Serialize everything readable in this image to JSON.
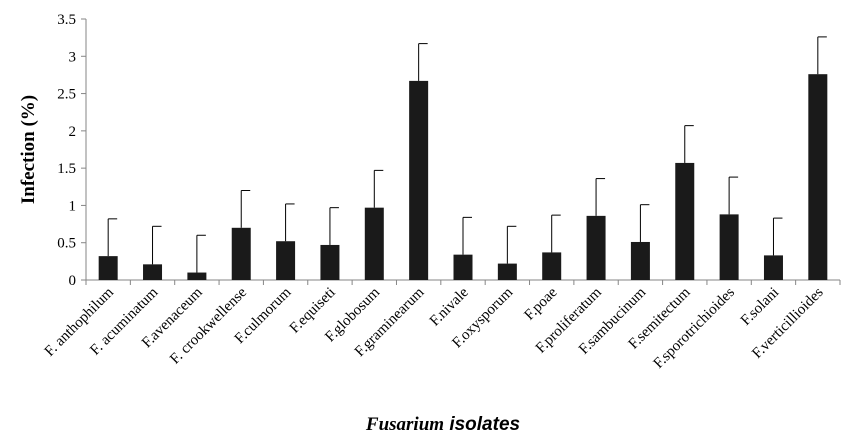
{
  "chart_data": {
    "type": "bar",
    "title": "",
    "ylabel": "Infection (%)",
    "xlabel_italic": "Fusarium",
    "xlabel_rest": " isolates",
    "ylim": [
      0,
      3.5
    ],
    "yticks": [
      "0",
      "0.5",
      "1",
      "1.5",
      "2",
      "2.5",
      "3",
      "3.5"
    ],
    "grid": false,
    "legend": "none",
    "bar_color": "#1a1a1a",
    "categories": [
      "F. anthophilum",
      "F. acuminatum",
      "F.avenaceum",
      "F. crookwellense",
      "F.culmorum",
      "F.equiseti",
      "F.globosum",
      "F.graminearum",
      "F.nivale",
      "F.oxysporum",
      "F.poae",
      "F.proliferatum",
      "F.sambucinum",
      "F.semitectum",
      "F.sporotrichioides",
      "F.solani",
      "F.verticillioides"
    ],
    "values": [
      0.32,
      0.21,
      0.1,
      0.7,
      0.52,
      0.47,
      0.97,
      2.67,
      0.34,
      0.22,
      0.37,
      0.86,
      0.51,
      1.57,
      0.88,
      0.33,
      2.76
    ],
    "error_plus": [
      0.5,
      0.51,
      0.5,
      0.5,
      0.5,
      0.5,
      0.5,
      0.5,
      0.5,
      0.5,
      0.5,
      0.5,
      0.5,
      0.5,
      0.5,
      0.5,
      0.5
    ]
  }
}
